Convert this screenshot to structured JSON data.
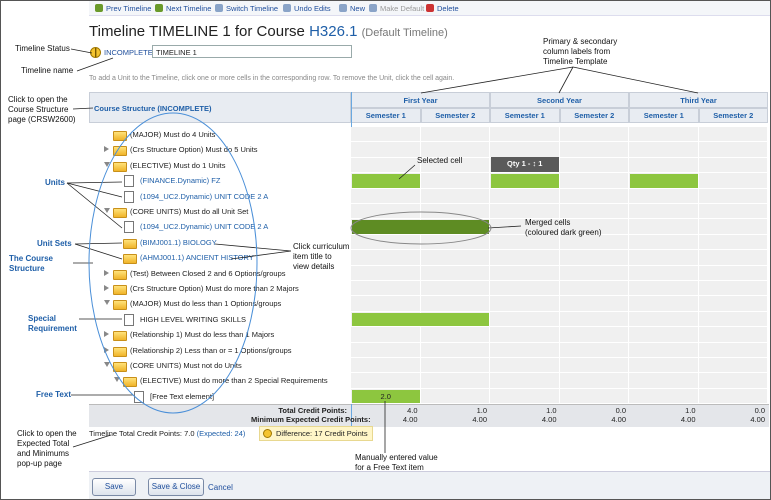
{
  "toolbar": [
    "Prev Timeline",
    "Next Timeline",
    "Switch Timeline",
    "Undo Edits",
    "New",
    "Make Default",
    "Delete"
  ],
  "header": {
    "title": "Timeline TIMELINE 1 for Course",
    "course_code": "H326.1",
    "subtitle": "(Default Timeline)"
  },
  "status": {
    "label": "INCOMPLETE",
    "name": "TIMELINE 1"
  },
  "instruction": "To add a Unit to the Timeline, click one or more cells in the corresponding row. To remove the Unit, click the cell again.",
  "grid": {
    "structure_header": "Course Structure (INCOMPLETE)",
    "years": [
      "First Year",
      "Second Year",
      "Third Year"
    ],
    "semesters": [
      "Semester 1",
      "Semester 2",
      "Semester 1",
      "Semester 2",
      "Semester 1",
      "Semester 2"
    ],
    "colors": {
      "light": "#8dc63f",
      "dark": "#5e8c23",
      "popup": "#5a5a5a"
    },
    "rows": [
      {
        "label": "(MAJOR) Must do 4 Units",
        "icon": "folder",
        "level": 1
      },
      {
        "label": "(Crs Structure Option) Must do 5 Units",
        "icon": "folder",
        "level": 1,
        "expander": "collapsed"
      },
      {
        "label": "(ELECTIVE) Must do 1 Units",
        "icon": "folder",
        "level": 1,
        "expander": "expanded",
        "cells": [
          null,
          null,
          {
            "fill": "popup",
            "text": "Qty 1 - ↕ 1"
          },
          null,
          null,
          null
        ]
      },
      {
        "label": "(FINANCE.Dynamic) FZ",
        "icon": "doc",
        "level": 2,
        "link": true,
        "cells": [
          {
            "fill": "light"
          },
          null,
          {
            "fill": "light"
          },
          null,
          {
            "fill": "light"
          },
          null
        ]
      },
      {
        "label": "(1094_UC2.Dynamic) UNIT CODE 2 A",
        "icon": "doc",
        "level": 2,
        "link": true
      },
      {
        "label": "(CORE UNITS) Must do all Unit Set",
        "icon": "folder",
        "level": 1,
        "expander": "expanded"
      },
      {
        "label": "(1094_UC2.Dynamic) UNIT CODE 2 A",
        "icon": "doc",
        "level": 2,
        "link": true,
        "cells": [
          {
            "fill": "dark",
            "span": 2
          },
          null,
          null,
          null,
          null,
          null
        ]
      },
      {
        "label": "(BIMJ001.1) BIOLOGY",
        "icon": "folder",
        "level": 2,
        "link": true
      },
      {
        "label": "(AHMJ001.1) ANCIENT HISTORY",
        "icon": "folder",
        "level": 2,
        "link": true
      },
      {
        "label": "(Test) Between Closed 2 and 6 Options/groups",
        "icon": "folder",
        "level": 1,
        "expander": "collapsed"
      },
      {
        "label": "(Crs Structure Option) Must do more than 2 Majors",
        "icon": "folder",
        "level": 1,
        "expander": "collapsed"
      },
      {
        "label": "(MAJOR) Must do less than 1 Options/groups",
        "icon": "folder",
        "level": 1,
        "expander": "expanded"
      },
      {
        "label": "HIGH LEVEL WRITING SKILLS",
        "icon": "doc",
        "level": 2,
        "cells": [
          {
            "fill": "light",
            "span": 2
          },
          null,
          null,
          null,
          null,
          null
        ]
      },
      {
        "label": "(Relationship 1) Must do less than 1 Majors",
        "icon": "folder",
        "level": 1,
        "expander": "collapsed"
      },
      {
        "label": "(Relationship 2) Less than or = 1 Options/groups",
        "icon": "folder",
        "level": 1,
        "expander": "collapsed"
      },
      {
        "label": "(CORE UNITS) Must not do Units",
        "icon": "folder",
        "level": 1,
        "expander": "expanded"
      },
      {
        "label": "(ELECTIVE) Must do more than 2 Special Requirements",
        "icon": "folder",
        "level": 2,
        "expander": "expanded"
      },
      {
        "label": "[Free Text element]",
        "icon": "doc",
        "level": 3,
        "cells": [
          {
            "fill": "light",
            "text": "2.0"
          },
          null,
          null,
          null,
          null,
          null
        ]
      }
    ],
    "totals": [
      {
        "label": "Total Credit Points:",
        "values": [
          "4.0",
          "1.0",
          "1.0",
          "0.0",
          "1.0",
          "0.0"
        ]
      },
      {
        "label": "Minimum Expected Credit Points:",
        "values": [
          "4.00",
          "4.00",
          "4.00",
          "4.00",
          "4.00",
          "4.00"
        ]
      }
    ]
  },
  "summary": {
    "label": "Timeline Total Credit Points:",
    "value": "7.0",
    "expected": "(Expected: 24)",
    "difference": "Difference: 17 Credit Points"
  },
  "buttons": [
    "Save",
    "Save & Close",
    "Cancel"
  ],
  "annotations": {
    "timeline_status": "Timeline Status",
    "timeline_name": "Timeline name",
    "course_structure": [
      "Click to open the",
      "Course Structure",
      "page (CRSW2600)"
    ],
    "units": "Units",
    "unit_sets": "Unit Sets",
    "the_course_structure": [
      "The Course",
      "Structure"
    ],
    "special_requirement": [
      "Special",
      "Requirement"
    ],
    "free_text": "Free Text",
    "expected": [
      "Click to open the",
      "Expected Total",
      "and Minimums",
      "pop-up page"
    ],
    "column_labels": [
      "Primary & secondary",
      "column labels from",
      "Timeline  Template"
    ],
    "selected_cell": "Selected cell",
    "merged_cells": [
      "Merged cells",
      "(coloured dark green)"
    ],
    "click_item": [
      "Click curriculum",
      "item title to",
      "view details"
    ],
    "manual_value": [
      "Manually entered value",
      "for a Free Text item"
    ]
  }
}
